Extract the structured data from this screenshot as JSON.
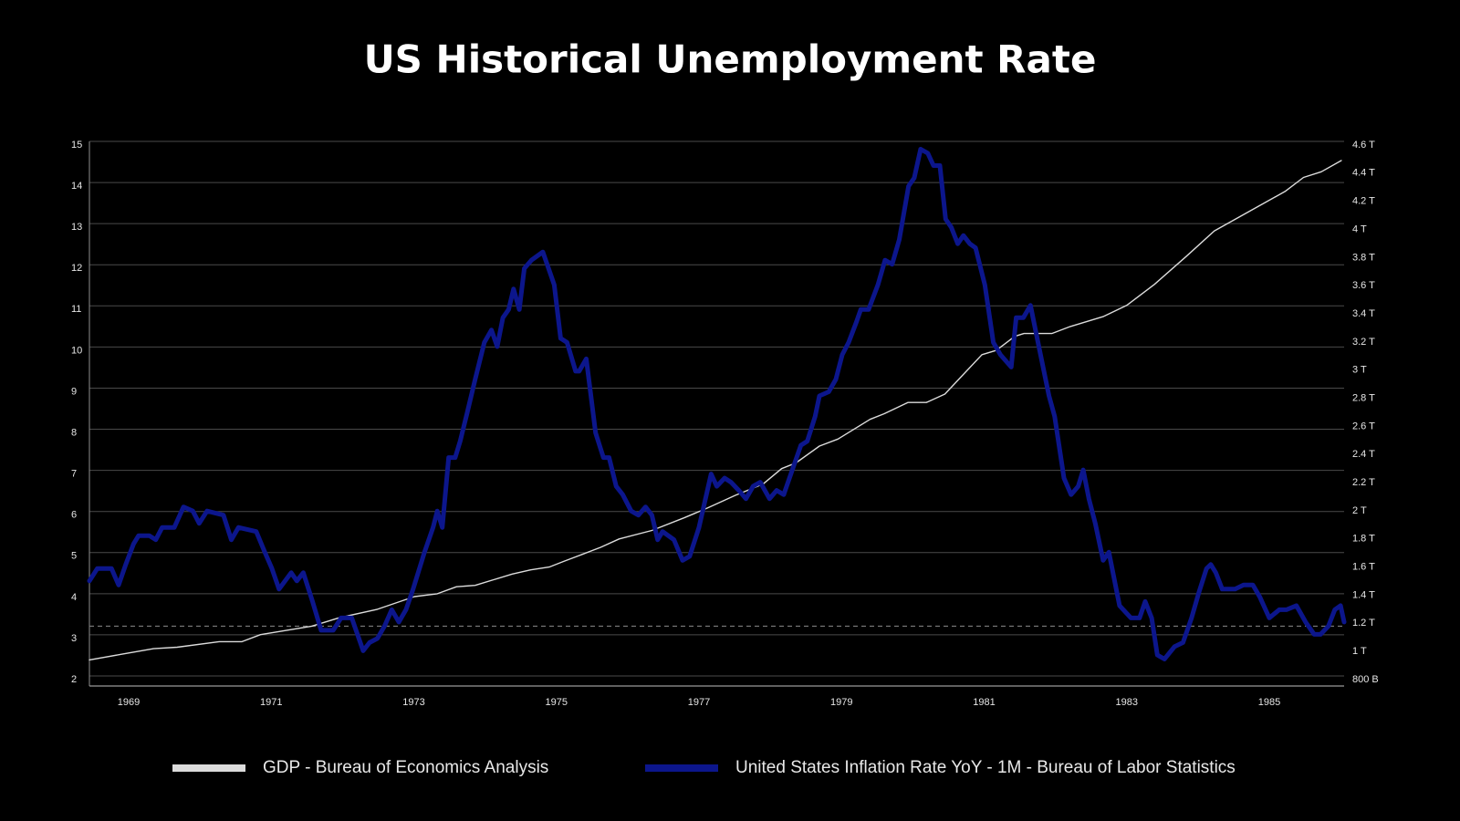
{
  "chart_data": {
    "type": "line",
    "title": "US Historical  Unemployment Rate",
    "xlim": [
      1968.45,
      1986.05
    ],
    "xticks": [
      1969,
      1971,
      1973,
      1975,
      1977,
      1979,
      1981,
      1983,
      1985
    ],
    "ylim": [
      2,
      15
    ],
    "yticks": [
      2,
      3,
      4,
      5,
      6,
      7,
      8,
      9,
      10,
      11,
      12,
      13,
      14,
      15
    ],
    "y2lim": [
      0.8,
      4.6
    ],
    "y2ticks": [
      {
        "value": 0.8,
        "label": "800 B"
      },
      {
        "value": 1,
        "label": "1 T"
      },
      {
        "value": 1.2,
        "label": "1.2 T"
      },
      {
        "value": 1.4,
        "label": "1.4 T"
      },
      {
        "value": 1.6,
        "label": "1.6 T"
      },
      {
        "value": 1.8,
        "label": "1.8 T"
      },
      {
        "value": 2,
        "label": "2 T"
      },
      {
        "value": 2.2,
        "label": "2.2 T"
      },
      {
        "value": 2.4,
        "label": "2.4 T"
      },
      {
        "value": 2.6,
        "label": "2.6 T"
      },
      {
        "value": 2.8,
        "label": "2.8 T"
      },
      {
        "value": 3,
        "label": "3 T"
      },
      {
        "value": 3.2,
        "label": "3.2 T"
      },
      {
        "value": 3.4,
        "label": "3.4 T"
      },
      {
        "value": 3.6,
        "label": "3.6 T"
      },
      {
        "value": 3.8,
        "label": "3.8 T"
      },
      {
        "value": 4,
        "label": "4 T"
      },
      {
        "value": 4.2,
        "label": "4.2 T"
      },
      {
        "value": 4.4,
        "label": "4.4 T"
      },
      {
        "value": 4.6,
        "label": "4.6 T"
      }
    ],
    "grid": true,
    "reference_line": 3.3,
    "series": [
      {
        "name": "GDP - Bureau of Economics Analysis",
        "color": "#dcdcdc",
        "axis": "y2",
        "x": [
          1968.45,
          1968.9,
          1969.35,
          1969.68,
          1970.27,
          1970.59,
          1970.85,
          1971.57,
          1971.96,
          1972.49,
          1973.01,
          1973.33,
          1973.6,
          1973.86,
          1974.12,
          1974.38,
          1974.64,
          1974.9,
          1975.1,
          1975.36,
          1975.62,
          1975.88,
          1976.34,
          1976.79,
          1977.12,
          1977.51,
          1977.9,
          1978.16,
          1978.36,
          1978.69,
          1978.95,
          1979.4,
          1979.6,
          1979.93,
          1980.19,
          1980.45,
          1980.71,
          1980.97,
          1981.17,
          1981.43,
          1981.56,
          1981.95,
          1982.21,
          1982.67,
          1983.0,
          1983.39,
          1983.84,
          1984.23,
          1984.69,
          1985.22,
          1985.48,
          1985.73,
          1986.01
        ],
        "values": [
          0.94,
          0.98,
          1.02,
          1.03,
          1.07,
          1.07,
          1.12,
          1.18,
          1.24,
          1.3,
          1.39,
          1.41,
          1.46,
          1.47,
          1.51,
          1.55,
          1.58,
          1.6,
          1.64,
          1.69,
          1.74,
          1.8,
          1.86,
          1.95,
          2.02,
          2.11,
          2.19,
          2.3,
          2.34,
          2.46,
          2.51,
          2.65,
          2.69,
          2.77,
          2.77,
          2.83,
          2.97,
          3.11,
          3.14,
          3.24,
          3.26,
          3.26,
          3.31,
          3.38,
          3.46,
          3.61,
          3.81,
          3.99,
          4.12,
          4.27,
          4.37,
          4.41,
          4.49
        ]
      },
      {
        "name": "United States Inflation Rate YoY - 1M - Bureau of Labor Statistics",
        "color": "#0c168c",
        "x": [
          1968.45,
          1968.56,
          1968.76,
          1968.86,
          1968.96,
          1969.07,
          1969.14,
          1969.29,
          1969.38,
          1969.47,
          1969.64,
          1969.77,
          1969.9,
          1969.99,
          1970.1,
          1970.33,
          1970.44,
          1970.54,
          1970.79,
          1970.91,
          1971.01,
          1971.11,
          1971.28,
          1971.36,
          1971.45,
          1971.58,
          1971.7,
          1971.87,
          1971.98,
          1972.13,
          1972.29,
          1972.38,
          1972.49,
          1972.59,
          1972.69,
          1972.79,
          1972.89,
          1972.99,
          1973.15,
          1973.27,
          1973.33,
          1973.4,
          1973.49,
          1973.58,
          1973.65,
          1973.75,
          1973.86,
          1973.99,
          1974.09,
          1974.17,
          1974.25,
          1974.33,
          1974.4,
          1974.48,
          1974.55,
          1974.65,
          1974.81,
          1974.97,
          1975.06,
          1975.15,
          1975.27,
          1975.32,
          1975.42,
          1975.55,
          1975.66,
          1975.74,
          1975.84,
          1975.93,
          1976.05,
          1976.15,
          1976.25,
          1976.34,
          1976.42,
          1976.49,
          1976.65,
          1976.77,
          1976.87,
          1977.0,
          1977.17,
          1977.25,
          1977.36,
          1977.45,
          1977.56,
          1977.66,
          1977.76,
          1977.86,
          1977.99,
          1978.09,
          1978.19,
          1978.31,
          1978.43,
          1978.52,
          1978.63,
          1978.69,
          1978.82,
          1978.92,
          1979.01,
          1979.1,
          1979.21,
          1979.27,
          1979.38,
          1979.51,
          1979.61,
          1979.71,
          1979.81,
          1979.94,
          1980.02,
          1980.11,
          1980.21,
          1980.29,
          1980.38,
          1980.46,
          1980.54,
          1980.63,
          1980.71,
          1980.8,
          1980.88,
          1981.01,
          1981.13,
          1981.23,
          1981.38,
          1981.45,
          1981.55,
          1981.65,
          1981.78,
          1981.91,
          1981.99,
          1982.12,
          1982.22,
          1982.32,
          1982.39,
          1982.47,
          1982.56,
          1982.67,
          1982.75,
          1982.9,
          1983.06,
          1983.18,
          1983.26,
          1983.35,
          1983.43,
          1983.53,
          1983.67,
          1983.79,
          1983.91,
          1984.01,
          1984.12,
          1984.18,
          1984.25,
          1984.34,
          1984.52,
          1984.64,
          1984.77,
          1984.87,
          1985.0,
          1985.14,
          1985.24,
          1985.38,
          1985.51,
          1985.63,
          1985.72,
          1985.83,
          1985.92,
          1986.0,
          1986.05
        ],
        "values": [
          4.4,
          4.7,
          4.7,
          4.3,
          4.8,
          5.3,
          5.5,
          5.5,
          5.4,
          5.7,
          5.7,
          6.2,
          6.1,
          5.8,
          6.1,
          6.0,
          5.4,
          5.7,
          5.6,
          5.1,
          4.7,
          4.2,
          4.6,
          4.4,
          4.6,
          3.9,
          3.2,
          3.2,
          3.5,
          3.5,
          2.7,
          2.9,
          3.0,
          3.3,
          3.7,
          3.4,
          3.7,
          4.2,
          5.1,
          5.7,
          6.1,
          5.7,
          7.4,
          7.4,
          7.8,
          8.5,
          9.3,
          10.2,
          10.5,
          10.1,
          10.8,
          11.0,
          11.5,
          11.0,
          12.0,
          12.2,
          12.4,
          11.6,
          10.3,
          10.2,
          9.5,
          9.5,
          9.8,
          8.0,
          7.4,
          7.4,
          6.7,
          6.5,
          6.1,
          6.0,
          6.2,
          6.0,
          5.4,
          5.6,
          5.4,
          4.9,
          5.0,
          5.7,
          7.0,
          6.7,
          6.9,
          6.8,
          6.6,
          6.4,
          6.7,
          6.8,
          6.4,
          6.6,
          6.5,
          7.1,
          7.7,
          7.8,
          8.4,
          8.9,
          9.0,
          9.3,
          9.9,
          10.2,
          10.7,
          11.0,
          11.0,
          11.6,
          12.2,
          12.1,
          12.7,
          14.0,
          14.2,
          14.9,
          14.8,
          14.5,
          14.5,
          13.2,
          13.0,
          12.6,
          12.8,
          12.6,
          12.5,
          11.6,
          10.2,
          9.9,
          9.6,
          10.8,
          10.8,
          11.1,
          10.0,
          8.9,
          8.4,
          6.9,
          6.5,
          6.7,
          7.1,
          6.4,
          5.8,
          4.9,
          5.1,
          3.8,
          3.5,
          3.5,
          3.9,
          3.5,
          2.6,
          2.5,
          2.8,
          2.9,
          3.5,
          4.1,
          4.7,
          4.8,
          4.6,
          4.2,
          4.2,
          4.3,
          4.3,
          4.0,
          3.5,
          3.7,
          3.7,
          3.8,
          3.4,
          3.1,
          3.1,
          3.3,
          3.7,
          3.8,
          3.4
        ]
      }
    ]
  }
}
